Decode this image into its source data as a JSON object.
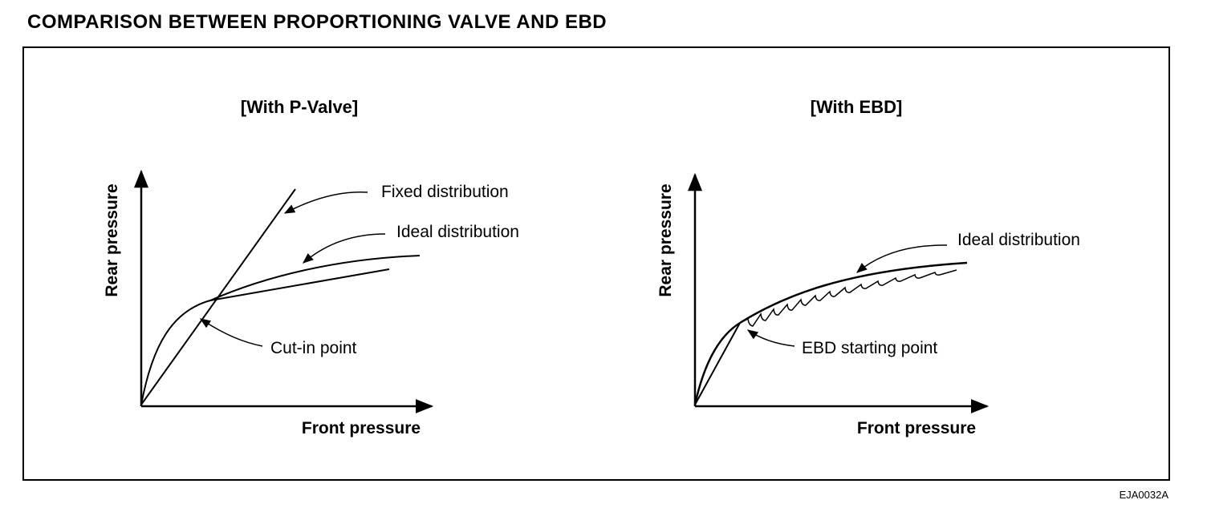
{
  "title": "COMPARISON BETWEEN PROPORTIONING VALVE AND EBD",
  "reference_code": "EJA0032A",
  "left_panel": {
    "heading": "[With P-Valve]",
    "x_axis_label": "Front pressure",
    "y_axis_label": "Rear pressure",
    "annotations": {
      "fixed": "Fixed distribution",
      "ideal": "Ideal distribution",
      "cutin": "Cut-in point"
    }
  },
  "right_panel": {
    "heading": "[With EBD]",
    "x_axis_label": "Front pressure",
    "y_axis_label": "Rear pressure",
    "annotations": {
      "ideal": "Ideal distribution",
      "start": "EBD starting point"
    }
  }
}
